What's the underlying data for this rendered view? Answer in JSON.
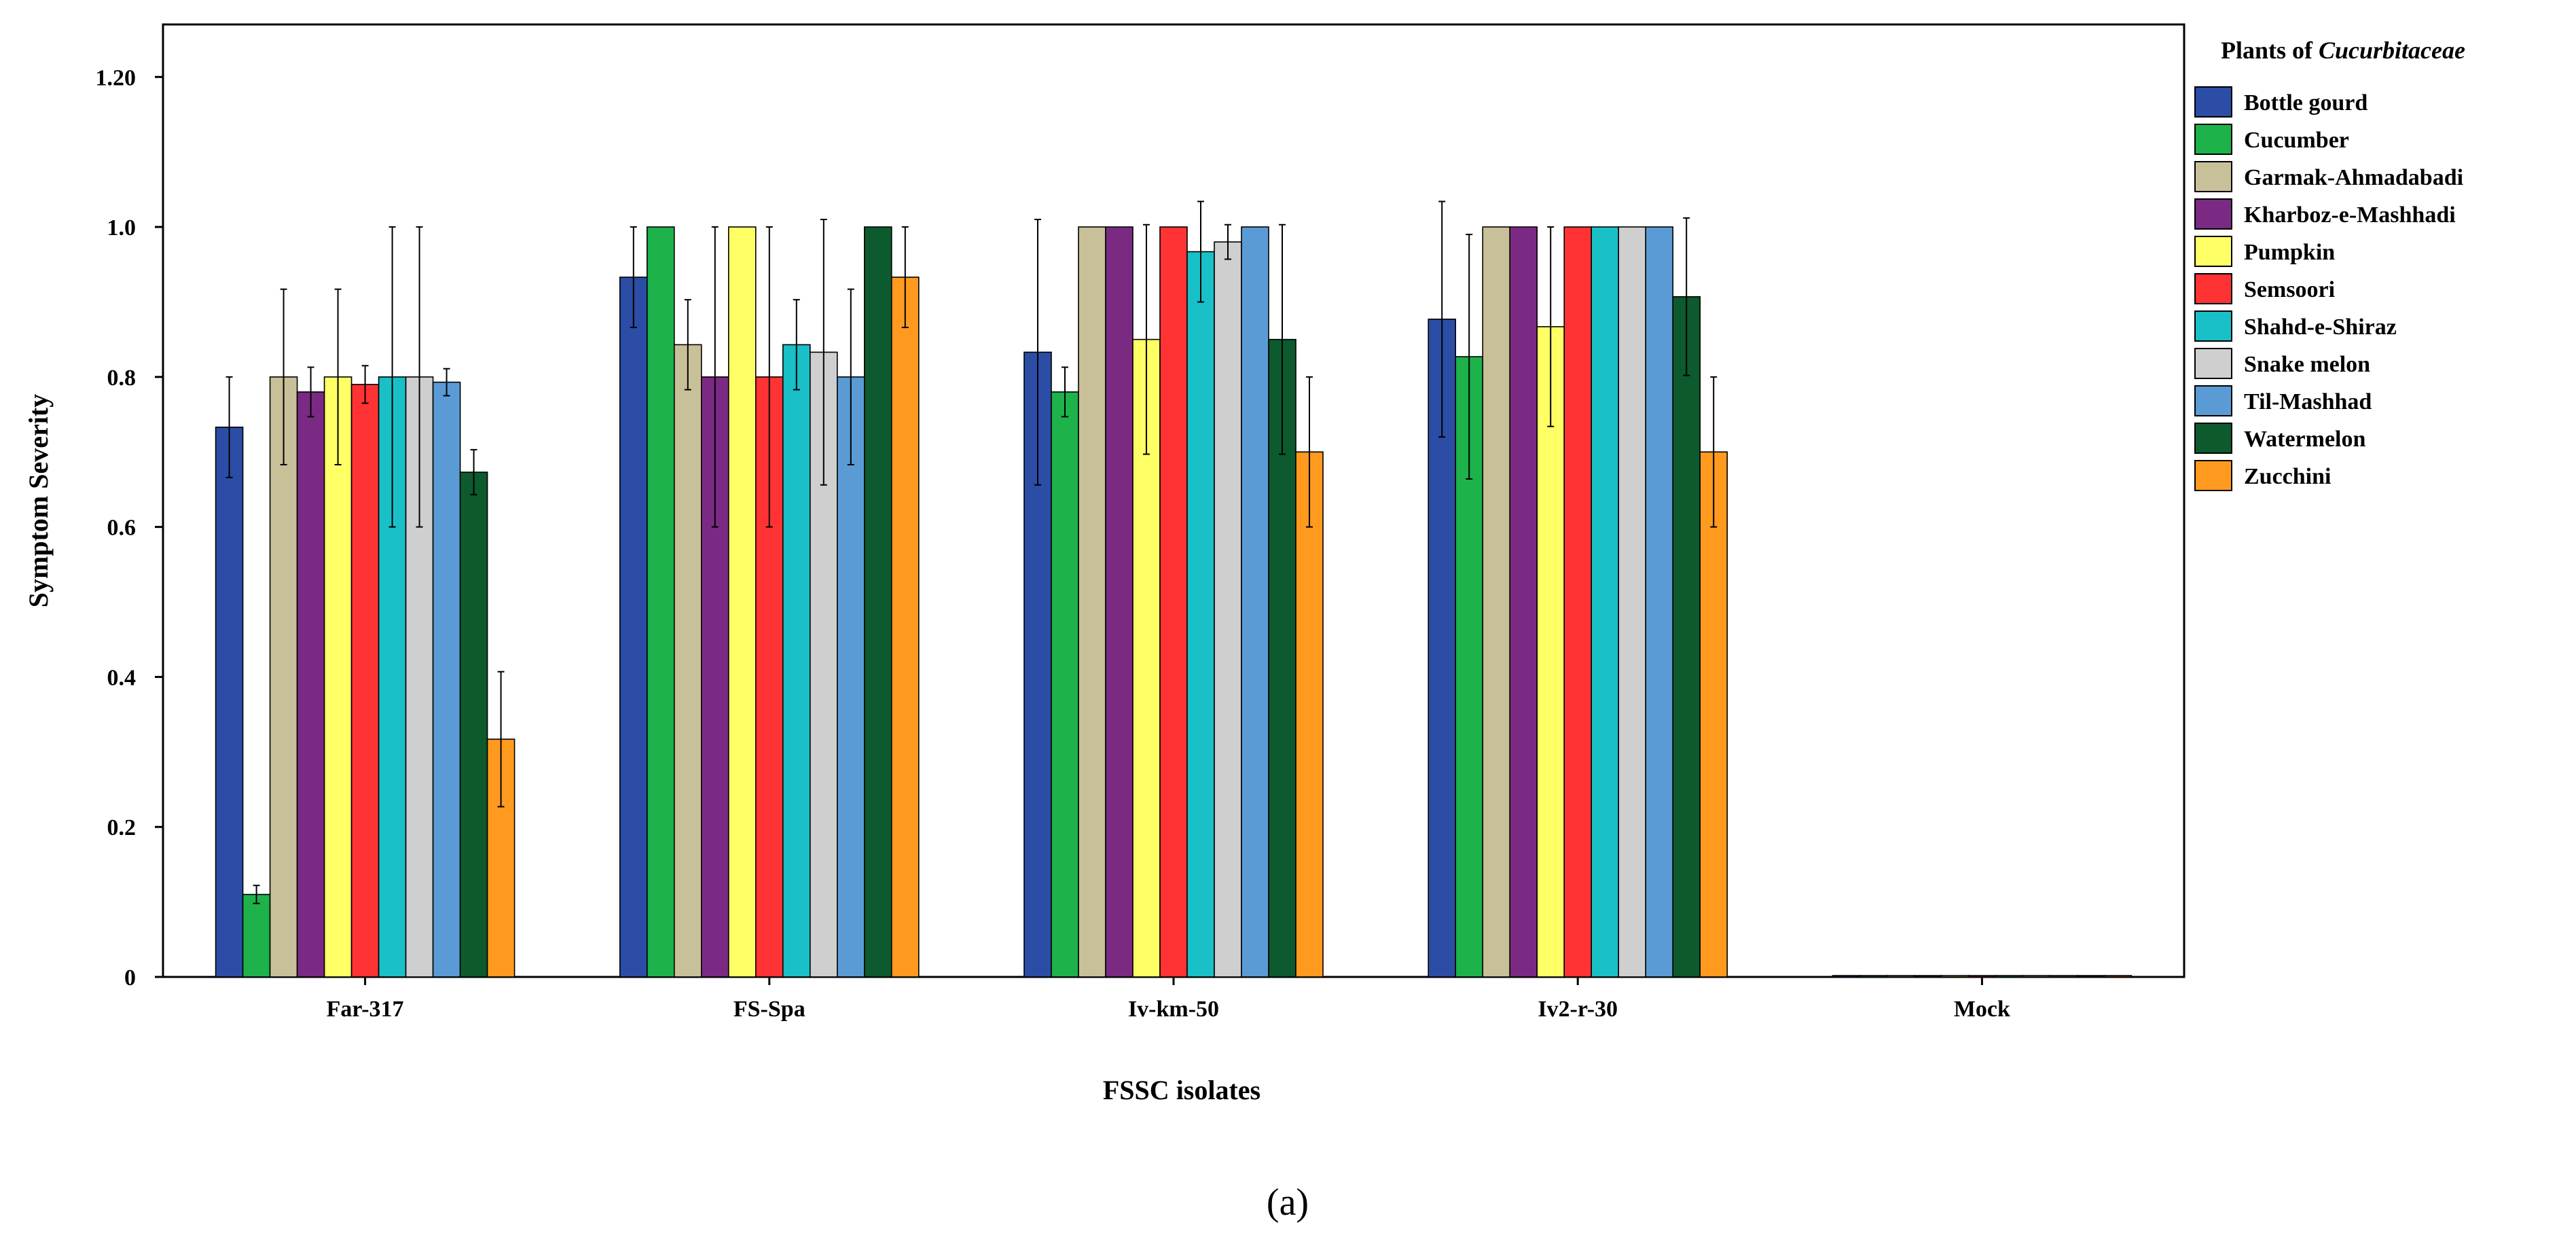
{
  "chart_data": {
    "type": "bar",
    "title": "",
    "xlabel": "FSSC isolates",
    "ylabel": "Symptom Severity",
    "ylim": [
      0,
      1.27
    ],
    "yticks": [
      {
        "value": 0,
        "label": "0"
      },
      {
        "value": 0.2,
        "label": "0.2"
      },
      {
        "value": 0.4,
        "label": "0.4"
      },
      {
        "value": 0.6,
        "label": "0.6"
      },
      {
        "value": 0.8,
        "label": "0.8"
      },
      {
        "value": 1.0,
        "label": "1.0"
      },
      {
        "value": 1.2,
        "label": "1.20"
      }
    ],
    "categories": [
      "Far-317",
      "FS-Spa",
      "Iv-km-50",
      "Iv2-r-30",
      "Mock"
    ],
    "legend_title_prefix": "Plants of ",
    "legend_title_italic": "Cucurbitaceae",
    "legend_position": "right",
    "panel_label": "(a)",
    "series": [
      {
        "name": "Bottle gourd",
        "color": "#2b4da6",
        "values": [
          0.733,
          0.933,
          0.833,
          0.877,
          0
        ],
        "errors": [
          0.067,
          0.067,
          0.177,
          0.157,
          0
        ]
      },
      {
        "name": "Cucumber",
        "color": "#1db24a",
        "values": [
          0.11,
          1.0,
          0.78,
          0.827,
          0
        ],
        "errors": [
          0.012,
          0,
          0.033,
          0.163,
          0
        ]
      },
      {
        "name": "Garmak-Ahmadabadi",
        "color": "#c8c098",
        "values": [
          0.8,
          0.843,
          1.0,
          1.0,
          0
        ],
        "errors": [
          0.117,
          0.06,
          0,
          0,
          0
        ]
      },
      {
        "name": "Kharboz-e-Mashhadi",
        "color": "#7b2a83",
        "values": [
          0.78,
          0.8,
          1.0,
          1.0,
          0
        ],
        "errors": [
          0.033,
          0.2,
          0,
          0,
          0
        ]
      },
      {
        "name": "Pumpkin",
        "color": "#ffff66",
        "values": [
          0.8,
          1.0,
          0.85,
          0.867,
          0
        ],
        "errors": [
          0.117,
          0,
          0.153,
          0.133,
          0
        ]
      },
      {
        "name": "Semsoori",
        "color": "#ff3333",
        "values": [
          0.79,
          0.8,
          1.0,
          1.0,
          0
        ],
        "errors": [
          0.025,
          0.2,
          0,
          0,
          0
        ]
      },
      {
        "name": "Shahd-e-Shiraz",
        "color": "#19c0c8",
        "values": [
          0.8,
          0.843,
          0.967,
          1.0,
          0
        ],
        "errors": [
          0.2,
          0.06,
          0.067,
          0,
          0
        ]
      },
      {
        "name": "Snake melon",
        "color": "#cfcfcf",
        "values": [
          0.8,
          0.833,
          0.98,
          1.0,
          0
        ],
        "errors": [
          0.2,
          0.177,
          0.023,
          0,
          0
        ]
      },
      {
        "name": "Til-Mashhad",
        "color": "#5b9bd5",
        "values": [
          0.793,
          0.8,
          1.0,
          1.0,
          0
        ],
        "errors": [
          0.018,
          0.117,
          0,
          0,
          0
        ]
      },
      {
        "name": "Watermelon",
        "color": "#0d5a2e",
        "values": [
          0.673,
          1.0,
          0.85,
          0.907,
          0
        ],
        "errors": [
          0.03,
          0,
          0.153,
          0.105,
          0
        ]
      },
      {
        "name": "Zucchini",
        "color": "#ff9a1f",
        "values": [
          0.317,
          0.933,
          0.7,
          0.7,
          0
        ],
        "errors": [
          0.09,
          0.067,
          0.1,
          0.1,
          0
        ]
      }
    ]
  }
}
